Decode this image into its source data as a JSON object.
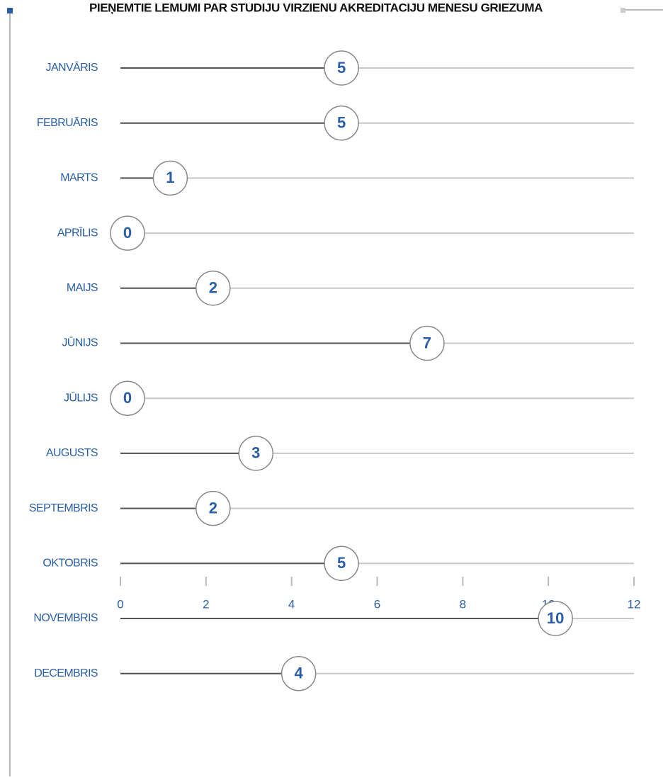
{
  "chart_data": {
    "type": "lollipop",
    "title": "PIEŅEMTIE LEMUMI PAR STUDIJU VIRZIENU AKREDITACIJU MENESU GRIEZUMA",
    "categories": [
      "JANVĀRIS",
      "FEBRUĀRIS",
      "MARTS",
      "APRĪLIS",
      "MAIJS",
      "JŪNIJS",
      "JŪLIJS",
      "AUGUSTS",
      "SEPTEMBRIS",
      "OKTOBRIS",
      "NOVEMBRIS",
      "DECEMBRIS"
    ],
    "values": [
      5,
      5,
      1,
      0,
      2,
      7,
      0,
      3,
      2,
      5,
      10,
      4
    ],
    "color": "#555555",
    "xlim": [
      0,
      12
    ],
    "xticks": [
      0,
      2,
      4,
      6,
      8,
      10,
      12
    ]
  }
}
